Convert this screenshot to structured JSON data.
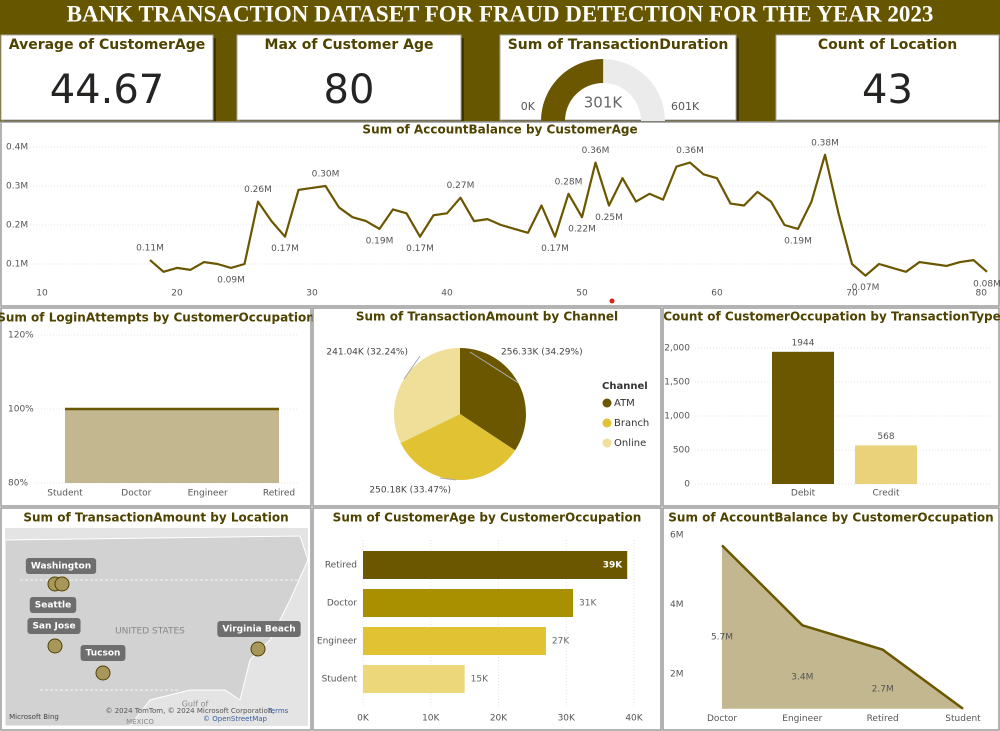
{
  "title": "BANK TRANSACTION DATASET FOR FRAUD DETECTION FOR THE YEAR 2023",
  "cards": [
    {
      "label": "Average of CustomerAge",
      "value": 44.67
    },
    {
      "label": "Max of Customer Age",
      "value": 80
    },
    {
      "label": "Count of Location",
      "value": 43
    }
  ],
  "chart_data": [
    {
      "type": "gauge",
      "title": "Sum of TransactionDuration",
      "value": 301000,
      "value_label": "301K",
      "ylim": [
        0,
        601000
      ],
      "yticks": [
        {
          "value": 0,
          "label": "0K"
        },
        {
          "value": 601000,
          "label": "601K"
        }
      ],
      "color": "#6b5700",
      "track_color": "#ebebeb"
    },
    {
      "type": "line",
      "title": "Sum of AccountBalance by CustomerAge",
      "x": [
        18,
        19,
        20,
        21,
        22,
        23,
        24,
        25,
        26,
        27,
        28,
        29,
        30,
        31,
        32,
        33,
        34,
        35,
        36,
        37,
        38,
        39,
        40,
        41,
        42,
        43,
        44,
        45,
        46,
        47,
        48,
        49,
        50,
        51,
        52,
        53,
        54,
        55,
        56,
        57,
        58,
        59,
        60,
        61,
        62,
        63,
        64,
        65,
        66,
        67,
        68,
        69,
        70,
        71,
        72,
        73,
        74,
        75,
        76,
        77,
        78,
        79,
        80
      ],
      "values": [
        110000,
        80000,
        90000,
        85000,
        105000,
        100000,
        90000,
        100000,
        260000,
        210000,
        170000,
        290000,
        295000,
        300000,
        245000,
        220000,
        210000,
        190000,
        240000,
        230000,
        170000,
        225000,
        230000,
        270000,
        210000,
        215000,
        200000,
        190000,
        180000,
        250000,
        170000,
        280000,
        220000,
        360000,
        250000,
        320000,
        260000,
        280000,
        265000,
        350000,
        360000,
        330000,
        320000,
        255000,
        250000,
        285000,
        260000,
        200000,
        190000,
        260000,
        380000,
        230000,
        100000,
        70000,
        100000,
        90000,
        80000,
        105000,
        100000,
        95000,
        105000,
        110000,
        80000
      ],
      "value_labels": [
        "0.11M",
        null,
        null,
        null,
        null,
        null,
        "0.09M",
        null,
        "0.26M",
        null,
        "0.17M",
        null,
        null,
        "0.30M",
        null,
        null,
        null,
        "0.19M",
        null,
        null,
        "0.17M",
        null,
        null,
        "0.27M",
        null,
        null,
        null,
        null,
        null,
        null,
        "0.17M",
        "0.28M",
        "0.22M",
        "0.36M",
        "0.25M",
        null,
        null,
        null,
        null,
        null,
        "0.36M",
        null,
        null,
        null,
        null,
        null,
        null,
        null,
        "0.19M",
        null,
        "0.38M",
        null,
        null,
        "0.07M",
        null,
        null,
        null,
        null,
        null,
        null,
        null,
        null,
        "0.08M"
      ],
      "color": "#6b5700",
      "xlim": [
        10,
        80
      ],
      "xticks": [
        10,
        20,
        30,
        40,
        50,
        60,
        70,
        80
      ],
      "ylim": [
        50000,
        420000
      ],
      "yticks": [
        {
          "value": 100000,
          "label": "0.1M"
        },
        {
          "value": 200000,
          "label": "0.2M"
        },
        {
          "value": 300000,
          "label": "0.3M"
        },
        {
          "value": 400000,
          "label": "0.4M"
        }
      ],
      "grid": true
    },
    {
      "type": "area",
      "title": "Sum of LoginAttempts by CustomerOccupation",
      "categories": [
        "Student",
        "Doctor",
        "Engineer",
        "Retired"
      ],
      "values": [
        100,
        100,
        100,
        100
      ],
      "color": "#6b5700",
      "fill": "#c3b78f",
      "ylim": [
        80,
        120
      ],
      "yticks": [
        {
          "value": 80,
          "label": "80%"
        },
        {
          "value": 100,
          "label": "100%"
        },
        {
          "value": 120,
          "label": "120%"
        }
      ],
      "grid": true
    },
    {
      "type": "pie",
      "title": "Sum of TransactionAmount by Channel",
      "legend_title": "Channel",
      "categories": [
        "ATM",
        "Branch",
        "Online"
      ],
      "values": [
        256330,
        250180,
        241040
      ],
      "value_labels": [
        "256.33K (34.29%)",
        "250.18K (33.47%)",
        "241.04K (32.24%)"
      ],
      "colors": [
        "#6b5700",
        "#e1c232",
        "#efdf98"
      ],
      "legend": "right"
    },
    {
      "type": "bar",
      "title": "Count of CustomerOccupation by TransactionType",
      "categories": [
        "Debit",
        "Credit"
      ],
      "values": [
        1944,
        568
      ],
      "colors": [
        "#6b5700",
        "#ead27a"
      ],
      "ylim": [
        0,
        2200
      ],
      "yticks": [
        0,
        500,
        {
          "value": 1000,
          "label": "1,000"
        },
        {
          "value": 1500,
          "label": "1,500"
        },
        {
          "value": 2000,
          "label": "2,000"
        }
      ],
      "grid": true
    },
    {
      "type": "map",
      "title": "Sum of TransactionAmount by Location",
      "categories": [
        "Washington",
        "Seattle",
        "San Jose",
        "Tucson",
        "Virginia Beach"
      ],
      "annotations": [
        "UNITED STATES",
        "Gulf of",
        "MEXICO",
        "© 2024 TomTom, © 2024 Microsoft Corporation,",
        "Terms",
        "© OpenStreetMap",
        "Microsoft Bing"
      ],
      "color": "#a8965a"
    },
    {
      "type": "hbar",
      "title": "Sum of CustomerAge by CustomerOccupation",
      "categories": [
        "Retired",
        "Doctor",
        "Engineer",
        "Student"
      ],
      "values": [
        39000,
        31000,
        27000,
        15000
      ],
      "value_labels": [
        "39K",
        "31K",
        "27K",
        "15K"
      ],
      "colors": [
        "#6b5700",
        "#a89000",
        "#e1c232",
        "#ecd77a"
      ],
      "xlim": [
        0,
        40000
      ],
      "xticks": [
        {
          "value": 0,
          "label": "0K"
        },
        {
          "value": 10000,
          "label": "10K"
        },
        {
          "value": 20000,
          "label": "20K"
        },
        {
          "value": 30000,
          "label": "30K"
        },
        {
          "value": 40000,
          "label": "40K"
        }
      ],
      "grid": true
    },
    {
      "type": "area",
      "title": "Sum of AccountBalance by CustomerOccupation",
      "categories": [
        "Doctor",
        "Engineer",
        "Retired",
        "Student"
      ],
      "values": [
        5700000,
        3400000,
        2700000,
        1000000
      ],
      "value_labels": [
        "5.7M",
        "3.4M",
        "2.7M",
        null
      ],
      "color": "#6b5700",
      "fill": "#c3b78f",
      "ylim": [
        1000000,
        6200000
      ],
      "yticks": [
        {
          "value": 2000000,
          "label": "2M"
        },
        {
          "value": 4000000,
          "label": "4M"
        },
        {
          "value": 6000000,
          "label": "6M"
        }
      ],
      "grid": false
    }
  ]
}
